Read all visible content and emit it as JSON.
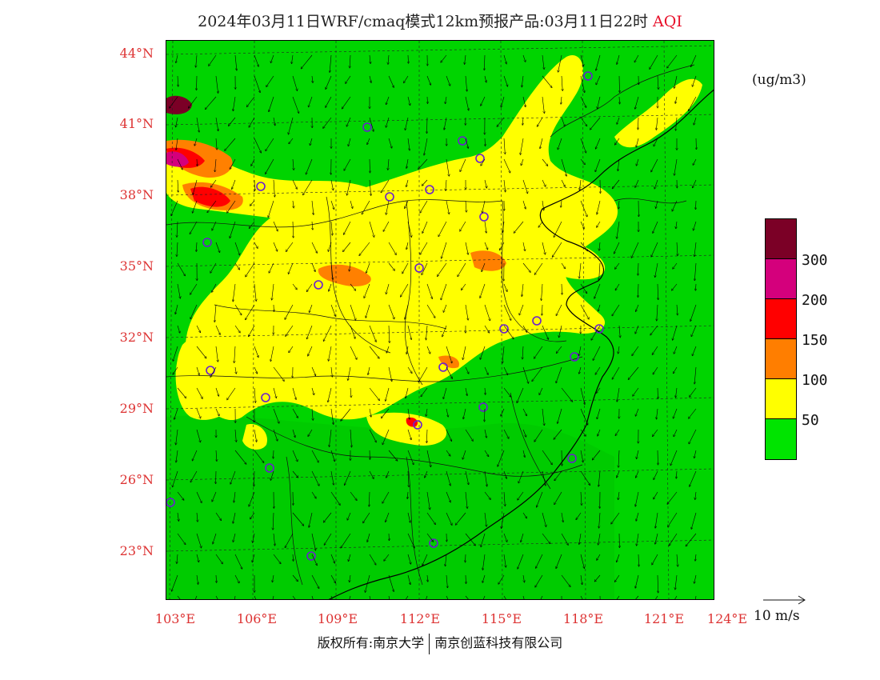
{
  "title": {
    "text": "2024年03月11日WRF/cmaq模式12km预报产品:03月11日22时",
    "product": "AQI"
  },
  "map": {
    "lat_labels": [
      "44°N",
      "41°N",
      "38°N",
      "35°N",
      "32°N",
      "29°N",
      "26°N",
      "23°N"
    ],
    "lon_labels": [
      "103°E",
      "106°E",
      "109°E",
      "112°E",
      "115°E",
      "118°E",
      "121°E",
      "124°E"
    ],
    "ocean_color": "#00d400",
    "land_low_color": "#00c800"
  },
  "legend": {
    "units": "(ug/m3)",
    "levels": [
      {
        "label": "300",
        "color": "#7b0026"
      },
      {
        "label": "200",
        "color": "#d4007c"
      },
      {
        "label": "150",
        "color": "#ff0000"
      },
      {
        "label": "100",
        "color": "#ff7e00"
      },
      {
        "label": "50",
        "color": "#ffff00"
      },
      {
        "label": "",
        "color": "#00e400"
      }
    ]
  },
  "wind_reference": {
    "label": "10 m/s"
  },
  "footer": {
    "left": "版权所有:南京大学",
    "right": "南京创蓝科技有限公司"
  }
}
